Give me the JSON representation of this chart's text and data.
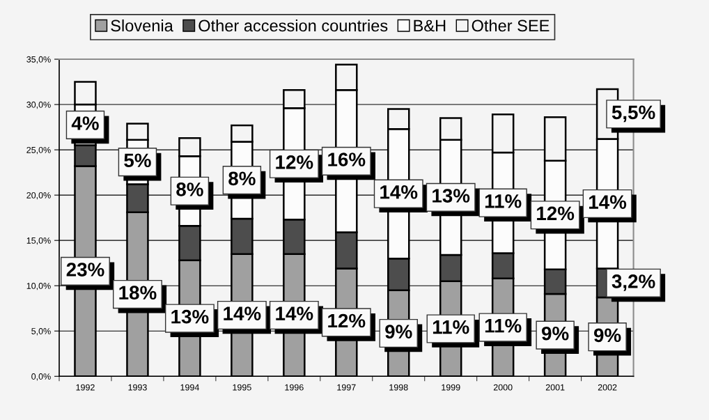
{
  "chart_data": {
    "type": "bar",
    "stacked": true,
    "legend": "top",
    "grid": "y",
    "categories": [
      "1992",
      "1993",
      "1994",
      "1995",
      "1996",
      "1997",
      "1998",
      "1999",
      "2000",
      "2001",
      "2002"
    ],
    "series": [
      {
        "name": "Slovenia",
        "color": "#a0a0a0",
        "values": [
          23.2,
          18.1,
          12.8,
          13.5,
          13.5,
          11.9,
          9.5,
          10.5,
          10.8,
          9.1,
          8.7
        ],
        "value_labels": [
          "23%",
          "18%",
          "13%",
          "14%",
          "14%",
          "12%",
          "9%",
          "11%",
          "11%",
          "9%",
          "9%"
        ]
      },
      {
        "name": "Other accession countries",
        "color": "#4d4d4d",
        "values": [
          2.3,
          3.1,
          3.8,
          3.9,
          3.8,
          4.0,
          3.5,
          2.9,
          2.8,
          2.7,
          3.2
        ],
        "value_labels": [
          null,
          null,
          null,
          null,
          null,
          null,
          null,
          null,
          null,
          null,
          "3,2%"
        ]
      },
      {
        "name": "B&H",
        "color": "#fcfcfc",
        "values": [
          4.5,
          4.9,
          7.7,
          8.5,
          12.3,
          15.7,
          14.3,
          12.7,
          11.1,
          12.0,
          14.3
        ],
        "value_labels": [
          "4%",
          "5%",
          "8%",
          "8%",
          "12%",
          "16%",
          "14%",
          "13%",
          "11%",
          "12%",
          "14%"
        ]
      },
      {
        "name": "Other SEE",
        "color": "#f4f4f4",
        "values": [
          2.5,
          1.8,
          2.0,
          1.8,
          2.0,
          2.8,
          2.2,
          2.4,
          4.2,
          4.8,
          5.5
        ],
        "value_labels": [
          null,
          null,
          null,
          null,
          null,
          null,
          null,
          null,
          null,
          null,
          "5,5%"
        ]
      }
    ],
    "ylim": [
      0,
      35
    ],
    "yticks": [
      {
        "value": 0,
        "label": "0,0%"
      },
      {
        "value": 5,
        "label": "5,0%"
      },
      {
        "value": 10,
        "label": "10,0%"
      },
      {
        "value": 15,
        "label": "15,0%"
      },
      {
        "value": 20,
        "label": "20,0%"
      },
      {
        "value": 25,
        "label": "25,0%"
      },
      {
        "value": 30,
        "label": "30,0%"
      },
      {
        "value": 35,
        "label": "35,0%"
      }
    ]
  }
}
